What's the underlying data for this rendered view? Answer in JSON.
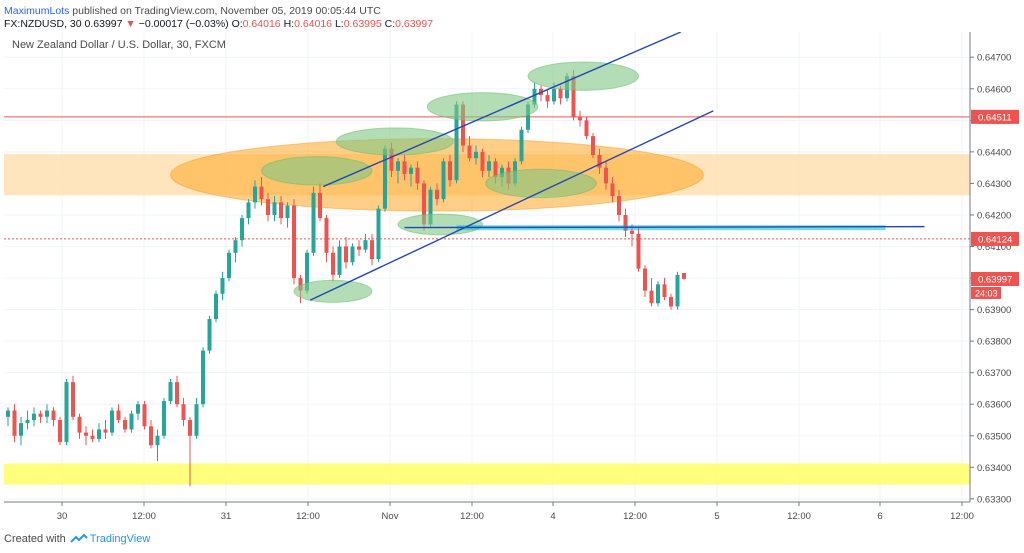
{
  "header": {
    "author": "MaximumLots",
    "published_text": "published on TradingView.com, November 05, 2019 00:05:44 UTC",
    "symbol_line": "FX:NZDUSD, 30",
    "last_price": "0.63997",
    "change_arrow": "▼",
    "change": "−0.00017 (−0.03%)",
    "o_label": "O:",
    "o_value": "0.64016",
    "h_label": "H:",
    "h_value": "0.64016",
    "l_label": "L:",
    "l_value": "0.63995",
    "c_label": "C:",
    "c_value": "0.63997"
  },
  "footer": {
    "created_with": "Created with",
    "brand": "TradingView"
  },
  "chart_data": {
    "type": "candlestick",
    "title": "New Zealand Dollar / U.S. Dollar, 30, FXCM",
    "ylim": [
      0.6329,
      0.6478
    ],
    "y_ticks": [
      "0.64700",
      "0.64600",
      "0.64500",
      "0.64400",
      "0.64300",
      "0.64200",
      "0.64100",
      "0.64000",
      "0.63900",
      "0.63800",
      "0.63700",
      "0.63600",
      "0.63500",
      "0.63400",
      "0.63300"
    ],
    "x_ticks": [
      "30",
      "12:00",
      "31",
      "12:00",
      "Nov",
      "12:00",
      "4",
      "12:00",
      "5",
      "12:00",
      "6",
      "12:00"
    ],
    "price_labels": [
      {
        "value": 0.64511,
        "text": "0.64511",
        "color": "#ef5350"
      },
      {
        "value": 0.64124,
        "text": "0.64124",
        "color": "#ef5350"
      },
      {
        "value": 0.63997,
        "text": "0.63997",
        "color": "#ef5350"
      }
    ],
    "countdown": "24:03",
    "colors": {
      "up": "#26a69a",
      "down": "#ef5350",
      "grid": "#f0f3fa",
      "channel": "#2347b8",
      "support": "#00bcd4",
      "zone_orange": "#ffcc80",
      "zone_yellow": "#ffff55",
      "ellipse_green": "#81c784",
      "ellipse_orange": "#ffa726"
    },
    "horizontal_lines": [
      {
        "value": 0.64511,
        "style": "solid",
        "color": "#ef5350"
      },
      {
        "value": 0.64124,
        "style": "dotted",
        "color": "#ef5350"
      }
    ],
    "zones": [
      {
        "from": 0.64262,
        "to": 0.64393,
        "color": "#ffe0b2"
      },
      {
        "from": 0.63345,
        "to": 0.63412,
        "color": "#ffff66"
      }
    ],
    "ohlc": [
      [
        0.6356,
        0.6359,
        0.6353,
        0.6358
      ],
      [
        0.6358,
        0.636,
        0.6348,
        0.635
      ],
      [
        0.635,
        0.6356,
        0.6347,
        0.6354
      ],
      [
        0.6354,
        0.6358,
        0.6352,
        0.6355
      ],
      [
        0.6355,
        0.6359,
        0.6353,
        0.6357
      ],
      [
        0.6357,
        0.6358,
        0.6354,
        0.6356
      ],
      [
        0.6356,
        0.636,
        0.6354,
        0.6358
      ],
      [
        0.6358,
        0.6359,
        0.6353,
        0.6355
      ],
      [
        0.6355,
        0.6356,
        0.6347,
        0.6348
      ],
      [
        0.6348,
        0.6368,
        0.6347,
        0.6367
      ],
      [
        0.6367,
        0.6369,
        0.6355,
        0.6356
      ],
      [
        0.6356,
        0.6357,
        0.6349,
        0.6351
      ],
      [
        0.6351,
        0.6353,
        0.6347,
        0.635
      ],
      [
        0.635,
        0.6352,
        0.6348,
        0.6349
      ],
      [
        0.6349,
        0.6354,
        0.6348,
        0.6352
      ],
      [
        0.6352,
        0.6355,
        0.6349,
        0.6351
      ],
      [
        0.6351,
        0.6359,
        0.635,
        0.6358
      ],
      [
        0.6358,
        0.636,
        0.6354,
        0.6355
      ],
      [
        0.6355,
        0.6356,
        0.6351,
        0.6352
      ],
      [
        0.6352,
        0.6358,
        0.6351,
        0.6357
      ],
      [
        0.6357,
        0.6361,
        0.6355,
        0.636
      ],
      [
        0.636,
        0.6361,
        0.6352,
        0.6353
      ],
      [
        0.6353,
        0.6355,
        0.6346,
        0.6347
      ],
      [
        0.6347,
        0.6352,
        0.6342,
        0.635
      ],
      [
        0.635,
        0.6362,
        0.6349,
        0.6361
      ],
      [
        0.6361,
        0.6368,
        0.636,
        0.6367
      ],
      [
        0.6367,
        0.6369,
        0.6359,
        0.636
      ],
      [
        0.636,
        0.6362,
        0.6353,
        0.6355
      ],
      [
        0.6355,
        0.6356,
        0.6334,
        0.635
      ],
      [
        0.635,
        0.6362,
        0.6349,
        0.636
      ],
      [
        0.636,
        0.6378,
        0.6359,
        0.6377
      ],
      [
        0.6377,
        0.6388,
        0.6376,
        0.6387
      ],
      [
        0.6387,
        0.6396,
        0.6386,
        0.6395
      ],
      [
        0.6395,
        0.6402,
        0.6393,
        0.64
      ],
      [
        0.64,
        0.6409,
        0.6399,
        0.6408
      ],
      [
        0.6408,
        0.6413,
        0.6405,
        0.6412
      ],
      [
        0.6412,
        0.642,
        0.641,
        0.6419
      ],
      [
        0.6419,
        0.6425,
        0.6417,
        0.6424
      ],
      [
        0.6424,
        0.6431,
        0.6422,
        0.6429
      ],
      [
        0.6429,
        0.6432,
        0.6423,
        0.6425
      ],
      [
        0.6425,
        0.6427,
        0.6418,
        0.642
      ],
      [
        0.642,
        0.6426,
        0.6418,
        0.6424
      ],
      [
        0.6424,
        0.6426,
        0.6417,
        0.6419
      ],
      [
        0.6419,
        0.6424,
        0.6416,
        0.6423
      ],
      [
        0.6423,
        0.6425,
        0.6398,
        0.64
      ],
      [
        0.64,
        0.6401,
        0.6392,
        0.6396
      ],
      [
        0.6396,
        0.6409,
        0.6395,
        0.6408
      ],
      [
        0.6408,
        0.6429,
        0.6407,
        0.6427
      ],
      [
        0.6427,
        0.643,
        0.6418,
        0.6419
      ],
      [
        0.6419,
        0.642,
        0.6405,
        0.6408
      ],
      [
        0.6408,
        0.641,
        0.6399,
        0.6401
      ],
      [
        0.6401,
        0.6412,
        0.64,
        0.641
      ],
      [
        0.641,
        0.6413,
        0.6403,
        0.6405
      ],
      [
        0.6405,
        0.6411,
        0.6404,
        0.641
      ],
      [
        0.641,
        0.6412,
        0.6407,
        0.6409
      ],
      [
        0.6409,
        0.6414,
        0.6408,
        0.6412
      ],
      [
        0.6412,
        0.6414,
        0.6404,
        0.6406
      ],
      [
        0.6406,
        0.6423,
        0.6405,
        0.6422
      ],
      [
        0.6422,
        0.6442,
        0.6421,
        0.6441
      ],
      [
        0.6441,
        0.6443,
        0.6432,
        0.6434
      ],
      [
        0.6434,
        0.6438,
        0.643,
        0.6437
      ],
      [
        0.6437,
        0.6439,
        0.6431,
        0.6433
      ],
      [
        0.6433,
        0.6436,
        0.6429,
        0.6435
      ],
      [
        0.6435,
        0.6437,
        0.6428,
        0.643
      ],
      [
        0.643,
        0.6431,
        0.6415,
        0.6417
      ],
      [
        0.6417,
        0.6429,
        0.6416,
        0.6428
      ],
      [
        0.6428,
        0.643,
        0.6423,
        0.6425
      ],
      [
        0.6425,
        0.6438,
        0.6424,
        0.6437
      ],
      [
        0.6437,
        0.6439,
        0.6429,
        0.6431
      ],
      [
        0.6431,
        0.6456,
        0.643,
        0.6455
      ],
      [
        0.6455,
        0.6456,
        0.644,
        0.6442
      ],
      [
        0.6442,
        0.6445,
        0.6437,
        0.6438
      ],
      [
        0.6438,
        0.6442,
        0.6436,
        0.644
      ],
      [
        0.644,
        0.6441,
        0.6432,
        0.6434
      ],
      [
        0.6434,
        0.6439,
        0.6432,
        0.6437
      ],
      [
        0.6437,
        0.6438,
        0.643,
        0.6432
      ],
      [
        0.6432,
        0.6436,
        0.6429,
        0.6435
      ],
      [
        0.6435,
        0.6437,
        0.6428,
        0.643
      ],
      [
        0.643,
        0.6438,
        0.6429,
        0.6437
      ],
      [
        0.6437,
        0.6448,
        0.6436,
        0.6447
      ],
      [
        0.6447,
        0.6456,
        0.6446,
        0.6455
      ],
      [
        0.6455,
        0.6462,
        0.6454,
        0.646
      ],
      [
        0.646,
        0.6461,
        0.6456,
        0.6458
      ],
      [
        0.6458,
        0.646,
        0.6454,
        0.6456
      ],
      [
        0.6456,
        0.6462,
        0.6455,
        0.646
      ],
      [
        0.646,
        0.6461,
        0.6455,
        0.6457
      ],
      [
        0.6457,
        0.6465,
        0.6456,
        0.6464
      ],
      [
        0.6464,
        0.6466,
        0.645,
        0.6451
      ],
      [
        0.6451,
        0.6453,
        0.6448,
        0.645
      ],
      [
        0.645,
        0.6451,
        0.6444,
        0.6445
      ],
      [
        0.6445,
        0.6446,
        0.6438,
        0.6439
      ],
      [
        0.6439,
        0.6441,
        0.6433,
        0.6435
      ],
      [
        0.6435,
        0.6437,
        0.6428,
        0.643
      ],
      [
        0.643,
        0.6432,
        0.6424,
        0.6426
      ],
      [
        0.6426,
        0.6428,
        0.6418,
        0.642
      ],
      [
        0.642,
        0.6422,
        0.6413,
        0.6415
      ],
      [
        0.6415,
        0.6417,
        0.641,
        0.6414
      ],
      [
        0.6414,
        0.6416,
        0.6402,
        0.6403
      ],
      [
        0.6403,
        0.6404,
        0.6394,
        0.6396
      ],
      [
        0.6396,
        0.64,
        0.6391,
        0.6392
      ],
      [
        0.6392,
        0.6399,
        0.6391,
        0.6398
      ],
      [
        0.6398,
        0.64,
        0.6393,
        0.6394
      ],
      [
        0.6394,
        0.6395,
        0.639,
        0.6391
      ],
      [
        0.6391,
        0.6402,
        0.639,
        0.6401
      ],
      [
        0.64016,
        0.64016,
        0.63995,
        0.63997
      ]
    ],
    "annotations": {
      "channel_lines": [
        {
          "from": {
            "bar": 48.5,
            "price": 0.6429
          },
          "to": {
            "bar": 103.5,
            "price": 0.6478
          }
        },
        {
          "from": {
            "bar": 46.5,
            "price": 0.6393
          },
          "to": {
            "bar": 108.5,
            "price": 0.6453
          }
        }
      ],
      "support_line": {
        "from": {
          "bar": 61,
          "price": 0.6416
        },
        "to": {
          "bar": 141,
          "price": 0.64163
        }
      },
      "support_band": {
        "from_bar": 69,
        "to_bar": 135,
        "price": 0.64158
      },
      "green_ellipses": [
        {
          "bar": 50,
          "price": 0.63958,
          "rx_bars": 6,
          "ry_price": 0.00035
        },
        {
          "bar": 47.5,
          "price": 0.6434,
          "rx_bars": 8.5,
          "ry_price": 0.00045
        },
        {
          "bar": 59.5,
          "price": 0.64433,
          "rx_bars": 9,
          "ry_price": 0.00043
        },
        {
          "bar": 73,
          "price": 0.64543,
          "rx_bars": 8.5,
          "ry_price": 0.00045
        },
        {
          "bar": 66.5,
          "price": 0.6417,
          "rx_bars": 6.5,
          "ry_price": 0.00033
        },
        {
          "bar": 82,
          "price": 0.643,
          "rx_bars": 8.5,
          "ry_price": 0.00045
        },
        {
          "bar": 88.5,
          "price": 0.6464,
          "rx_bars": 8.5,
          "ry_price": 0.00045
        }
      ],
      "orange_ellipse": {
        "bar": 66,
        "price": 0.64327,
        "rx_bars": 41,
        "ry_price": 0.00115
      }
    }
  }
}
